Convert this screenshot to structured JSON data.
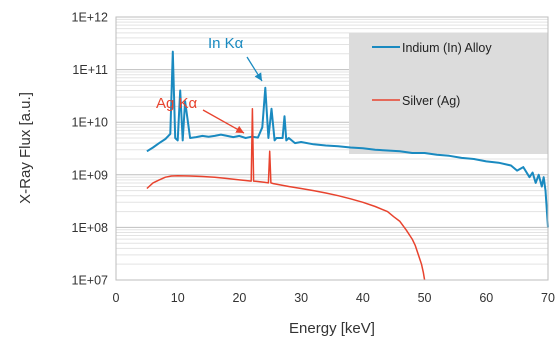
{
  "chart_data": {
    "type": "line",
    "xlabel": "Energy [keV]",
    "ylabel": "X-Ray Flux [a.u.]",
    "xlim": [
      0,
      70
    ],
    "ylim": [
      10000000.0,
      1000000000000.0
    ],
    "y_scale": "log",
    "x_ticks": [
      "0",
      "10",
      "20",
      "30",
      "40",
      "50",
      "60",
      "70"
    ],
    "y_ticks": [
      "1E+07",
      "1E+08",
      "1E+09",
      "1E+10",
      "1E+11",
      "1E+12"
    ],
    "grid": true,
    "legend_position": "top-right",
    "series": [
      {
        "name": "Indium (In) Alloy",
        "color": "#1a8ac0",
        "x": [
          5,
          6,
          7,
          8,
          8.8,
          9.2,
          9.6,
          10,
          10.4,
          10.8,
          11.2,
          12,
          13,
          14,
          15,
          16,
          17,
          18,
          19,
          20,
          21,
          22,
          23,
          23.7,
          24.2,
          24.7,
          25.2,
          25.7,
          26,
          26.5,
          27,
          27.3,
          27.6,
          28,
          29,
          30,
          32,
          34,
          36,
          38,
          40,
          42,
          44,
          46,
          48,
          50,
          52,
          54,
          56,
          58,
          60,
          62,
          64,
          65,
          66,
          67,
          67.5,
          68,
          68.5,
          69,
          69.3,
          69.6,
          70
        ],
        "values": [
          2800000000.0,
          3300000000.0,
          4000000000.0,
          4800000000.0,
          6000000000.0,
          220000000000.0,
          5000000000.0,
          4500000000.0,
          40000000000.0,
          4500000000.0,
          25000000000.0,
          5000000000.0,
          5200000000.0,
          5500000000.0,
          5300000000.0,
          5500000000.0,
          5800000000.0,
          5500000000.0,
          5200000000.0,
          5500000000.0,
          5000000000.0,
          5300000000.0,
          5100000000.0,
          8000000000.0,
          45000000000.0,
          5000000000.0,
          18000000000.0,
          4500000000.0,
          5000000000.0,
          5000000000.0,
          5000000000.0,
          13000000000.0,
          4500000000.0,
          5000000000.0,
          4000000000.0,
          4200000000.0,
          3800000000.0,
          3600000000.0,
          3500000000.0,
          3300000000.0,
          3200000000.0,
          3000000000.0,
          2900000000.0,
          2800000000.0,
          2600000000.0,
          2600000000.0,
          2400000000.0,
          2300000000.0,
          2100000000.0,
          2000000000.0,
          1800000000.0,
          1700000000.0,
          1500000000.0,
          1200000000.0,
          1400000000.0,
          900000000.0,
          1100000000.0,
          700000000.0,
          1000000000.0,
          600000000.0,
          900000000.0,
          500000000.0,
          100000000.0
        ]
      },
      {
        "name": "Silver (Ag)",
        "color": "#e8432e",
        "x": [
          5,
          6,
          7,
          8,
          9,
          10,
          12,
          14,
          16,
          18,
          20,
          21,
          21.9,
          22.1,
          22.3,
          22.8,
          24,
          24.7,
          24.9,
          25.1,
          25.5,
          28,
          30,
          32,
          34,
          36,
          38,
          40,
          42,
          44,
          45,
          46,
          47,
          48,
          48.5,
          49,
          49.5,
          49.8,
          50
        ],
        "values": [
          550000000.0,
          700000000.0,
          800000000.0,
          900000000.0,
          950000000.0,
          960000000.0,
          950000000.0,
          930000000.0,
          900000000.0,
          850000000.0,
          800000000.0,
          780000000.0,
          760000000.0,
          18000000000.0,
          760000000.0,
          750000000.0,
          720000000.0,
          700000000.0,
          2800000000.0,
          700000000.0,
          680000000.0,
          600000000.0,
          550000000.0,
          500000000.0,
          450000000.0,
          400000000.0,
          350000000.0,
          300000000.0,
          250000000.0,
          200000000.0,
          160000000.0,
          130000000.0,
          90000000.0,
          60000000.0,
          45000000.0,
          30000000.0,
          20000000.0,
          14000000.0,
          10000000.0
        ]
      }
    ],
    "annotations": [
      {
        "text": "In Kα",
        "color": "#1a8ac0"
      },
      {
        "text": "Ag Kα",
        "color": "#e8432e"
      }
    ]
  }
}
